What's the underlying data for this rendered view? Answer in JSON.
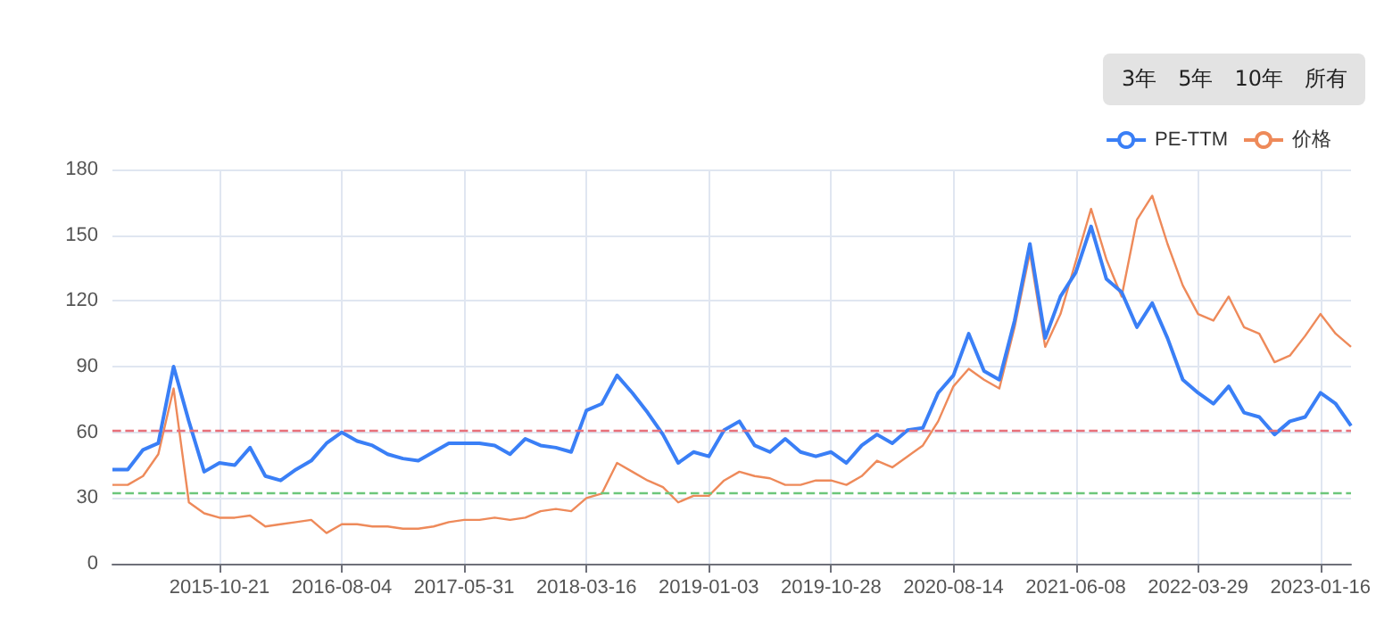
{
  "chart_data": {
    "type": "line",
    "categories": [
      null,
      null,
      null,
      null,
      null,
      null,
      null,
      "2015-10-21",
      null,
      null,
      null,
      null,
      null,
      null,
      null,
      "2016-08-04",
      null,
      null,
      null,
      null,
      null,
      null,
      null,
      "2017-05-31",
      null,
      null,
      null,
      null,
      null,
      null,
      null,
      "2018-03-16",
      null,
      null,
      null,
      null,
      null,
      null,
      null,
      "2019-01-03",
      null,
      null,
      null,
      null,
      null,
      null,
      null,
      "2019-10-28",
      null,
      null,
      null,
      null,
      null,
      null,
      null,
      "2020-08-14",
      null,
      null,
      null,
      null,
      null,
      null,
      null,
      "2021-06-08",
      null,
      null,
      null,
      null,
      null,
      null,
      null,
      "2022-03-29",
      null,
      null,
      null,
      null,
      null,
      null,
      null,
      "2023-01-16",
      null,
      null
    ],
    "series": [
      {
        "name": "PE-TTM",
        "color": "#3a7ff6",
        "values": [
          43,
          43,
          52,
          55,
          90,
          65,
          42,
          46,
          45,
          53,
          40,
          38,
          43,
          47,
          55,
          60,
          56,
          54,
          50,
          48,
          47,
          51,
          55,
          55,
          55,
          54,
          50,
          57,
          54,
          53,
          51,
          70,
          73,
          86,
          78,
          69,
          59,
          46,
          51,
          49,
          61,
          65,
          54,
          51,
          57,
          51,
          49,
          51,
          46,
          54,
          59,
          55,
          61,
          62,
          78,
          86,
          105,
          88,
          84,
          111,
          146,
          103,
          122,
          133,
          154,
          130,
          124,
          108,
          119,
          103,
          84,
          78,
          73,
          81,
          69,
          67,
          59,
          65,
          67,
          78,
          73,
          63
        ]
      },
      {
        "name": "价格",
        "color": "#ee8a5a",
        "values": [
          36,
          36,
          40,
          50,
          80,
          28,
          23,
          21,
          21,
          22,
          17,
          18,
          19,
          20,
          14,
          18,
          18,
          17,
          17,
          16,
          16,
          17,
          19,
          20,
          20,
          21,
          20,
          21,
          24,
          25,
          24,
          30,
          32,
          46,
          42,
          38,
          35,
          28,
          31,
          31,
          38,
          42,
          40,
          39,
          36,
          36,
          38,
          38,
          36,
          40,
          47,
          44,
          49,
          54,
          65,
          81,
          89,
          84,
          80,
          108,
          142,
          99,
          114,
          138,
          162,
          139,
          122,
          157,
          168,
          146,
          127,
          114,
          111,
          122,
          108,
          105,
          92,
          95,
          104,
          114,
          105,
          99
        ]
      }
    ],
    "ylim": [
      0,
      180
    ],
    "yticks": [
      0,
      30,
      60,
      90,
      120,
      150,
      180
    ],
    "grid": true,
    "legend": "top right",
    "ref_lines": [
      {
        "axis": "y",
        "value": 61,
        "color": "#e8707a",
        "line_style": "dashed"
      },
      {
        "axis": "y",
        "value": 32,
        "color": "#6cc67a",
        "line_style": "dashed"
      }
    ],
    "annotations": [
      "3年",
      "5年",
      "10年",
      "所有"
    ]
  }
}
